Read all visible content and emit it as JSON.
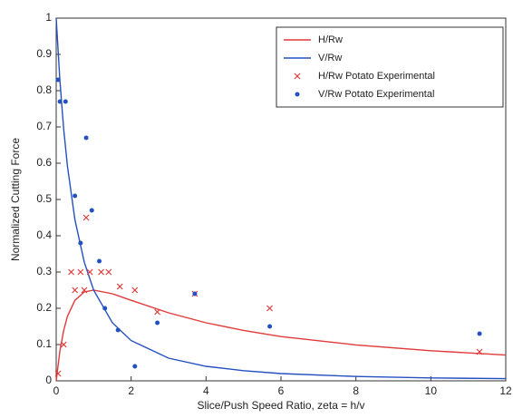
{
  "chart_data": {
    "type": "line",
    "xlabel": "Slice/Push Speed Ratio, zeta = h/v",
    "ylabel": "Normalized Cutting Force",
    "xlim": [
      0,
      12
    ],
    "xticks": [
      0,
      2,
      4,
      6,
      8,
      10,
      12
    ],
    "ylim": [
      0,
      1
    ],
    "yticks": [
      0,
      0.1,
      0.2,
      0.3,
      0.4,
      0.5,
      0.6,
      0.7,
      0.8,
      0.9,
      1
    ],
    "legend": "upper right",
    "series": [
      {
        "name": "H/Rw",
        "color": "#e03a3a",
        "style": "line",
        "x": [
          0,
          0.1,
          0.2,
          0.3,
          0.5,
          0.75,
          1,
          1.5,
          2,
          3,
          4,
          5,
          6,
          8,
          10,
          12
        ],
        "values": [
          0,
          0.083,
          0.139,
          0.178,
          0.222,
          0.245,
          0.25,
          0.24,
          0.222,
          0.1875,
          0.16,
          0.139,
          0.122,
          0.099,
          0.083,
          0.071
        ]
      },
      {
        "name": "V/Rw",
        "color": "#2550c0",
        "style": "line",
        "x": [
          0,
          0.1,
          0.2,
          0.3,
          0.5,
          0.75,
          1,
          1.5,
          2,
          3,
          4,
          5,
          6,
          8,
          10,
          12
        ],
        "values": [
          1,
          0.826,
          0.694,
          0.592,
          0.444,
          0.327,
          0.25,
          0.16,
          0.111,
          0.0625,
          0.04,
          0.028,
          0.02,
          0.012,
          0.008,
          0.006
        ]
      },
      {
        "name": "H/Rw Potato Experimental",
        "color": "#e03a3a",
        "style": "x",
        "x": [
          0.05,
          0.2,
          0.4,
          0.5,
          0.65,
          0.75,
          0.8,
          0.9,
          1.2,
          1.4,
          1.7,
          2.1,
          2.7,
          3.7,
          5.7,
          11.3
        ],
        "values": [
          0.02,
          0.1,
          0.3,
          0.25,
          0.3,
          0.25,
          0.45,
          0.3,
          0.3,
          0.3,
          0.26,
          0.25,
          0.19,
          0.24,
          0.2,
          0.08
        ]
      },
      {
        "name": "V/Rw Potato Experimental",
        "color": "#2550c0",
        "style": "dot",
        "x": [
          0.05,
          0.1,
          0.25,
          0.5,
          0.65,
          0.8,
          0.95,
          1.15,
          1.3,
          1.65,
          2.1,
          2.7,
          3.7,
          5.7,
          11.3
        ],
        "values": [
          0.83,
          0.77,
          0.77,
          0.51,
          0.38,
          0.67,
          0.47,
          0.33,
          0.2,
          0.14,
          0.04,
          0.16,
          0.24,
          0.15,
          0.13
        ]
      }
    ]
  }
}
